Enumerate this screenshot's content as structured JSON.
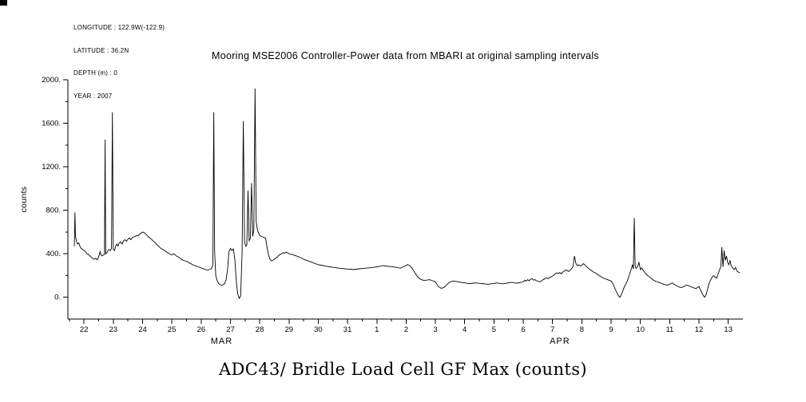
{
  "header": {
    "longitude": "LONGITUDE : 122.9W(-122.9)",
    "latitude": "LATITUDE : 36.2N",
    "depth": "DEPTH (m) : 0",
    "year": "YEAR : 2007"
  },
  "chart_data": {
    "type": "line",
    "title": "Mooring MSE2006 Controller-Power data from MBARI at original sampling intervals",
    "caption": "ADC43/ Bridle Load Cell GF Max (counts)",
    "ylabel": "counts",
    "xlabel": "",
    "line_color": "#000000",
    "grid": false,
    "legend": "none",
    "xlim": [
      21.45,
      44.5
    ],
    "ylim": [
      -200,
      2000
    ],
    "xtick_values": [
      22,
      23,
      24,
      25,
      26,
      27,
      28,
      29,
      30,
      31,
      32,
      33,
      34,
      35,
      36,
      37,
      38,
      39,
      40,
      41,
      42,
      43,
      44
    ],
    "xtick_labels": [
      "22",
      "23",
      "24",
      "25",
      "26",
      "27",
      "28",
      "29",
      "30",
      "31",
      "1",
      "2",
      "3",
      "4",
      "5",
      "6",
      "7",
      "8",
      "9",
      "10",
      "11",
      "12",
      "13"
    ],
    "ytick_values": [
      0,
      400,
      800,
      1200,
      1600,
      2000
    ],
    "ytick_labels": [
      "0.",
      "400.",
      "800.",
      "1200.",
      "1600.",
      "2000."
    ],
    "months": [
      {
        "label": "MAR",
        "day": 26.7
      },
      {
        "label": "APR",
        "day": 38.25
      }
    ],
    "points": [
      [
        21.67,
        470
      ],
      [
        21.69,
        780
      ],
      [
        21.71,
        560
      ],
      [
        21.74,
        520
      ],
      [
        21.78,
        490
      ],
      [
        21.82,
        500
      ],
      [
        21.86,
        470
      ],
      [
        21.9,
        450
      ],
      [
        21.95,
        440
      ],
      [
        22.0,
        430
      ],
      [
        22.05,
        420
      ],
      [
        22.1,
        400
      ],
      [
        22.15,
        395
      ],
      [
        22.2,
        380
      ],
      [
        22.25,
        370
      ],
      [
        22.3,
        355
      ],
      [
        22.35,
        350
      ],
      [
        22.4,
        360
      ],
      [
        22.45,
        345
      ],
      [
        22.5,
        370
      ],
      [
        22.55,
        420
      ],
      [
        22.58,
        390
      ],
      [
        22.62,
        380
      ],
      [
        22.66,
        390
      ],
      [
        22.7,
        395
      ],
      [
        22.72,
        1450
      ],
      [
        22.74,
        400
      ],
      [
        22.78,
        410
      ],
      [
        22.82,
        430
      ],
      [
        22.86,
        440
      ],
      [
        22.9,
        430
      ],
      [
        22.94,
        450
      ],
      [
        22.97,
        1700
      ],
      [
        23.0,
        440
      ],
      [
        23.04,
        430
      ],
      [
        23.08,
        470
      ],
      [
        23.12,
        490
      ],
      [
        23.16,
        470
      ],
      [
        23.2,
        500
      ],
      [
        23.25,
        510
      ],
      [
        23.3,
        490
      ],
      [
        23.35,
        520
      ],
      [
        23.4,
        530
      ],
      [
        23.45,
        515
      ],
      [
        23.5,
        535
      ],
      [
        23.55,
        545
      ],
      [
        23.6,
        530
      ],
      [
        23.65,
        550
      ],
      [
        23.7,
        555
      ],
      [
        23.75,
        560
      ],
      [
        23.8,
        570
      ],
      [
        23.85,
        565
      ],
      [
        23.9,
        580
      ],
      [
        23.95,
        590
      ],
      [
        24.0,
        600
      ],
      [
        24.05,
        595
      ],
      [
        24.1,
        585
      ],
      [
        24.15,
        570
      ],
      [
        24.2,
        555
      ],
      [
        24.25,
        545
      ],
      [
        24.3,
        535
      ],
      [
        24.35,
        520
      ],
      [
        24.4,
        510
      ],
      [
        24.45,
        495
      ],
      [
        24.5,
        480
      ],
      [
        24.55,
        470
      ],
      [
        24.6,
        455
      ],
      [
        24.65,
        445
      ],
      [
        24.7,
        440
      ],
      [
        24.75,
        430
      ],
      [
        24.8,
        420
      ],
      [
        24.85,
        410
      ],
      [
        24.9,
        405
      ],
      [
        24.95,
        395
      ],
      [
        25.0,
        390
      ],
      [
        25.05,
        400
      ],
      [
        25.1,
        395
      ],
      [
        25.15,
        380
      ],
      [
        25.2,
        375
      ],
      [
        25.25,
        365
      ],
      [
        25.3,
        355
      ],
      [
        25.35,
        345
      ],
      [
        25.4,
        340
      ],
      [
        25.45,
        335
      ],
      [
        25.5,
        330
      ],
      [
        25.55,
        325
      ],
      [
        25.6,
        315
      ],
      [
        25.65,
        310
      ],
      [
        25.7,
        300
      ],
      [
        25.75,
        295
      ],
      [
        25.8,
        290
      ],
      [
        25.85,
        285
      ],
      [
        25.9,
        280
      ],
      [
        25.95,
        275
      ],
      [
        26.0,
        270
      ],
      [
        26.05,
        265
      ],
      [
        26.1,
        260
      ],
      [
        26.15,
        255
      ],
      [
        26.2,
        250
      ],
      [
        26.25,
        252
      ],
      [
        26.3,
        258
      ],
      [
        26.35,
        262
      ],
      [
        26.4,
        300
      ],
      [
        26.43,
        1700
      ],
      [
        26.46,
        420
      ],
      [
        26.5,
        200
      ],
      [
        26.55,
        150
      ],
      [
        26.6,
        125
      ],
      [
        26.65,
        115
      ],
      [
        26.7,
        110
      ],
      [
        26.75,
        115
      ],
      [
        26.8,
        125
      ],
      [
        26.85,
        160
      ],
      [
        26.9,
        250
      ],
      [
        26.95,
        420
      ],
      [
        27.0,
        450
      ],
      [
        27.05,
        430
      ],
      [
        27.1,
        445
      ],
      [
        27.15,
        350
      ],
      [
        27.2,
        150
      ],
      [
        27.25,
        30
      ],
      [
        27.3,
        -10
      ],
      [
        27.35,
        15
      ],
      [
        27.4,
        420
      ],
      [
        27.44,
        1620
      ],
      [
        27.48,
        520
      ],
      [
        27.52,
        470
      ],
      [
        27.56,
        480
      ],
      [
        27.6,
        980
      ],
      [
        27.64,
        520
      ],
      [
        27.68,
        540
      ],
      [
        27.72,
        1050
      ],
      [
        27.76,
        560
      ],
      [
        27.8,
        620
      ],
      [
        27.84,
        1920
      ],
      [
        27.88,
        700
      ],
      [
        27.92,
        620
      ],
      [
        27.96,
        590
      ],
      [
        28.0,
        570
      ],
      [
        28.05,
        560
      ],
      [
        28.1,
        555
      ],
      [
        28.15,
        550
      ],
      [
        28.2,
        545
      ],
      [
        28.25,
        460
      ],
      [
        28.3,
        390
      ],
      [
        28.35,
        350
      ],
      [
        28.4,
        335
      ],
      [
        28.45,
        340
      ],
      [
        28.5,
        350
      ],
      [
        28.55,
        360
      ],
      [
        28.6,
        370
      ],
      [
        28.65,
        385
      ],
      [
        28.7,
        395
      ],
      [
        28.75,
        400
      ],
      [
        28.8,
        410
      ],
      [
        28.85,
        405
      ],
      [
        28.9,
        415
      ],
      [
        28.95,
        410
      ],
      [
        29.0,
        400
      ],
      [
        29.1,
        395
      ],
      [
        29.2,
        385
      ],
      [
        29.3,
        375
      ],
      [
        29.4,
        365
      ],
      [
        29.5,
        350
      ],
      [
        29.6,
        340
      ],
      [
        29.7,
        330
      ],
      [
        29.8,
        320
      ],
      [
        29.9,
        310
      ],
      [
        30.0,
        300
      ],
      [
        30.1,
        295
      ],
      [
        30.2,
        290
      ],
      [
        30.3,
        285
      ],
      [
        30.4,
        280
      ],
      [
        30.5,
        275
      ],
      [
        30.6,
        272
      ],
      [
        30.7,
        268
      ],
      [
        30.8,
        265
      ],
      [
        30.9,
        262
      ],
      [
        31.0,
        260
      ],
      [
        31.1,
        258
      ],
      [
        31.2,
        255
      ],
      [
        31.3,
        258
      ],
      [
        31.4,
        262
      ],
      [
        31.5,
        265
      ],
      [
        31.6,
        268
      ],
      [
        31.7,
        270
      ],
      [
        31.8,
        272
      ],
      [
        31.9,
        276
      ],
      [
        32.0,
        280
      ],
      [
        32.1,
        285
      ],
      [
        32.2,
        292
      ],
      [
        32.3,
        288
      ],
      [
        32.4,
        285
      ],
      [
        32.5,
        282
      ],
      [
        32.6,
        278
      ],
      [
        32.7,
        272
      ],
      [
        32.8,
        268
      ],
      [
        32.9,
        280
      ],
      [
        33.0,
        292
      ],
      [
        33.05,
        300
      ],
      [
        33.1,
        295
      ],
      [
        33.15,
        285
      ],
      [
        33.2,
        270
      ],
      [
        33.3,
        225
      ],
      [
        33.4,
        185
      ],
      [
        33.5,
        165
      ],
      [
        33.6,
        155
      ],
      [
        33.7,
        158
      ],
      [
        33.8,
        162
      ],
      [
        33.9,
        152
      ],
      [
        34.0,
        142
      ],
      [
        34.1,
        100
      ],
      [
        34.2,
        82
      ],
      [
        34.3,
        92
      ],
      [
        34.4,
        120
      ],
      [
        34.5,
        140
      ],
      [
        34.6,
        150
      ],
      [
        34.7,
        146
      ],
      [
        34.8,
        142
      ],
      [
        34.9,
        136
      ],
      [
        35.0,
        132
      ],
      [
        35.1,
        128
      ],
      [
        35.2,
        126
      ],
      [
        35.3,
        130
      ],
      [
        35.4,
        132
      ],
      [
        35.5,
        128
      ],
      [
        35.6,
        126
      ],
      [
        35.7,
        122
      ],
      [
        35.8,
        120
      ],
      [
        35.9,
        124
      ],
      [
        36.0,
        126
      ],
      [
        36.1,
        132
      ],
      [
        36.2,
        128
      ],
      [
        36.3,
        124
      ],
      [
        36.4,
        128
      ],
      [
        36.5,
        134
      ],
      [
        36.6,
        138
      ],
      [
        36.7,
        132
      ],
      [
        36.8,
        130
      ],
      [
        36.9,
        136
      ],
      [
        37.0,
        142
      ],
      [
        37.05,
        158
      ],
      [
        37.1,
        148
      ],
      [
        37.15,
        162
      ],
      [
        37.2,
        152
      ],
      [
        37.25,
        166
      ],
      [
        37.3,
        172
      ],
      [
        37.35,
        158
      ],
      [
        37.4,
        162
      ],
      [
        37.45,
        152
      ],
      [
        37.5,
        148
      ],
      [
        37.55,
        142
      ],
      [
        37.6,
        146
      ],
      [
        37.65,
        158
      ],
      [
        37.7,
        165
      ],
      [
        37.75,
        172
      ],
      [
        37.8,
        178
      ],
      [
        37.85,
        172
      ],
      [
        37.9,
        182
      ],
      [
        37.95,
        188
      ],
      [
        38.0,
        195
      ],
      [
        38.05,
        205
      ],
      [
        38.1,
        215
      ],
      [
        38.15,
        225
      ],
      [
        38.2,
        218
      ],
      [
        38.25,
        228
      ],
      [
        38.3,
        215
      ],
      [
        38.35,
        232
      ],
      [
        38.4,
        240
      ],
      [
        38.45,
        252
      ],
      [
        38.5,
        245
      ],
      [
        38.55,
        238
      ],
      [
        38.6,
        250
      ],
      [
        38.65,
        262
      ],
      [
        38.7,
        285
      ],
      [
        38.75,
        380
      ],
      [
        38.8,
        310
      ],
      [
        38.85,
        290
      ],
      [
        38.9,
        298
      ],
      [
        38.95,
        288
      ],
      [
        39.0,
        295
      ],
      [
        39.05,
        310
      ],
      [
        39.1,
        300
      ],
      [
        39.15,
        285
      ],
      [
        39.2,
        272
      ],
      [
        39.25,
        260
      ],
      [
        39.3,
        252
      ],
      [
        39.35,
        242
      ],
      [
        39.4,
        232
      ],
      [
        39.45,
        225
      ],
      [
        39.5,
        218
      ],
      [
        39.55,
        208
      ],
      [
        39.6,
        198
      ],
      [
        39.65,
        190
      ],
      [
        39.7,
        182
      ],
      [
        39.75,
        175
      ],
      [
        39.8,
        170
      ],
      [
        39.85,
        165
      ],
      [
        39.9,
        160
      ],
      [
        39.95,
        155
      ],
      [
        40.0,
        150
      ],
      [
        40.05,
        130
      ],
      [
        40.1,
        100
      ],
      [
        40.15,
        70
      ],
      [
        40.2,
        40
      ],
      [
        40.25,
        15
      ],
      [
        40.3,
        0
      ],
      [
        40.35,
        25
      ],
      [
        40.4,
        60
      ],
      [
        40.45,
        95
      ],
      [
        40.5,
        120
      ],
      [
        40.55,
        150
      ],
      [
        40.6,
        185
      ],
      [
        40.65,
        230
      ],
      [
        40.7,
        270
      ],
      [
        40.73,
        300
      ],
      [
        40.76,
        260
      ],
      [
        40.79,
        730
      ],
      [
        40.82,
        290
      ],
      [
        40.85,
        265
      ],
      [
        40.9,
        280
      ],
      [
        40.95,
        320
      ],
      [
        41.0,
        255
      ],
      [
        41.05,
        270
      ],
      [
        41.1,
        245
      ],
      [
        41.15,
        230
      ],
      [
        41.2,
        210
      ],
      [
        41.25,
        200
      ],
      [
        41.3,
        190
      ],
      [
        41.35,
        178
      ],
      [
        41.4,
        168
      ],
      [
        41.45,
        158
      ],
      [
        41.5,
        150
      ],
      [
        41.55,
        145
      ],
      [
        41.6,
        140
      ],
      [
        41.65,
        135
      ],
      [
        41.7,
        130
      ],
      [
        41.75,
        125
      ],
      [
        41.8,
        120
      ],
      [
        41.85,
        116
      ],
      [
        41.9,
        112
      ],
      [
        41.95,
        116
      ],
      [
        42.0,
        120
      ],
      [
        42.05,
        128
      ],
      [
        42.1,
        132
      ],
      [
        42.15,
        120
      ],
      [
        42.2,
        112
      ],
      [
        42.25,
        104
      ],
      [
        42.3,
        98
      ],
      [
        42.35,
        92
      ],
      [
        42.4,
        88
      ],
      [
        42.45,
        96
      ],
      [
        42.5,
        102
      ],
      [
        42.55,
        108
      ],
      [
        42.6,
        112
      ],
      [
        42.65,
        106
      ],
      [
        42.7,
        100
      ],
      [
        42.75,
        94
      ],
      [
        42.8,
        90
      ],
      [
        42.85,
        84
      ],
      [
        42.9,
        80
      ],
      [
        42.95,
        90
      ],
      [
        43.0,
        100
      ],
      [
        43.05,
        70
      ],
      [
        43.1,
        40
      ],
      [
        43.15,
        15
      ],
      [
        43.2,
        0
      ],
      [
        43.25,
        30
      ],
      [
        43.3,
        80
      ],
      [
        43.35,
        130
      ],
      [
        43.4,
        160
      ],
      [
        43.45,
        185
      ],
      [
        43.5,
        200
      ],
      [
        43.55,
        185
      ],
      [
        43.6,
        175
      ],
      [
        43.65,
        210
      ],
      [
        43.7,
        250
      ],
      [
        43.75,
        285
      ],
      [
        43.78,
        460
      ],
      [
        43.82,
        280
      ],
      [
        43.86,
        430
      ],
      [
        43.9,
        340
      ],
      [
        43.94,
        380
      ],
      [
        43.98,
        320
      ],
      [
        44.02,
        300
      ],
      [
        44.06,
        340
      ],
      [
        44.1,
        290
      ],
      [
        44.15,
        270
      ],
      [
        44.2,
        255
      ],
      [
        44.25,
        275
      ],
      [
        44.3,
        240
      ],
      [
        44.35,
        230
      ],
      [
        44.4,
        225
      ]
    ]
  }
}
